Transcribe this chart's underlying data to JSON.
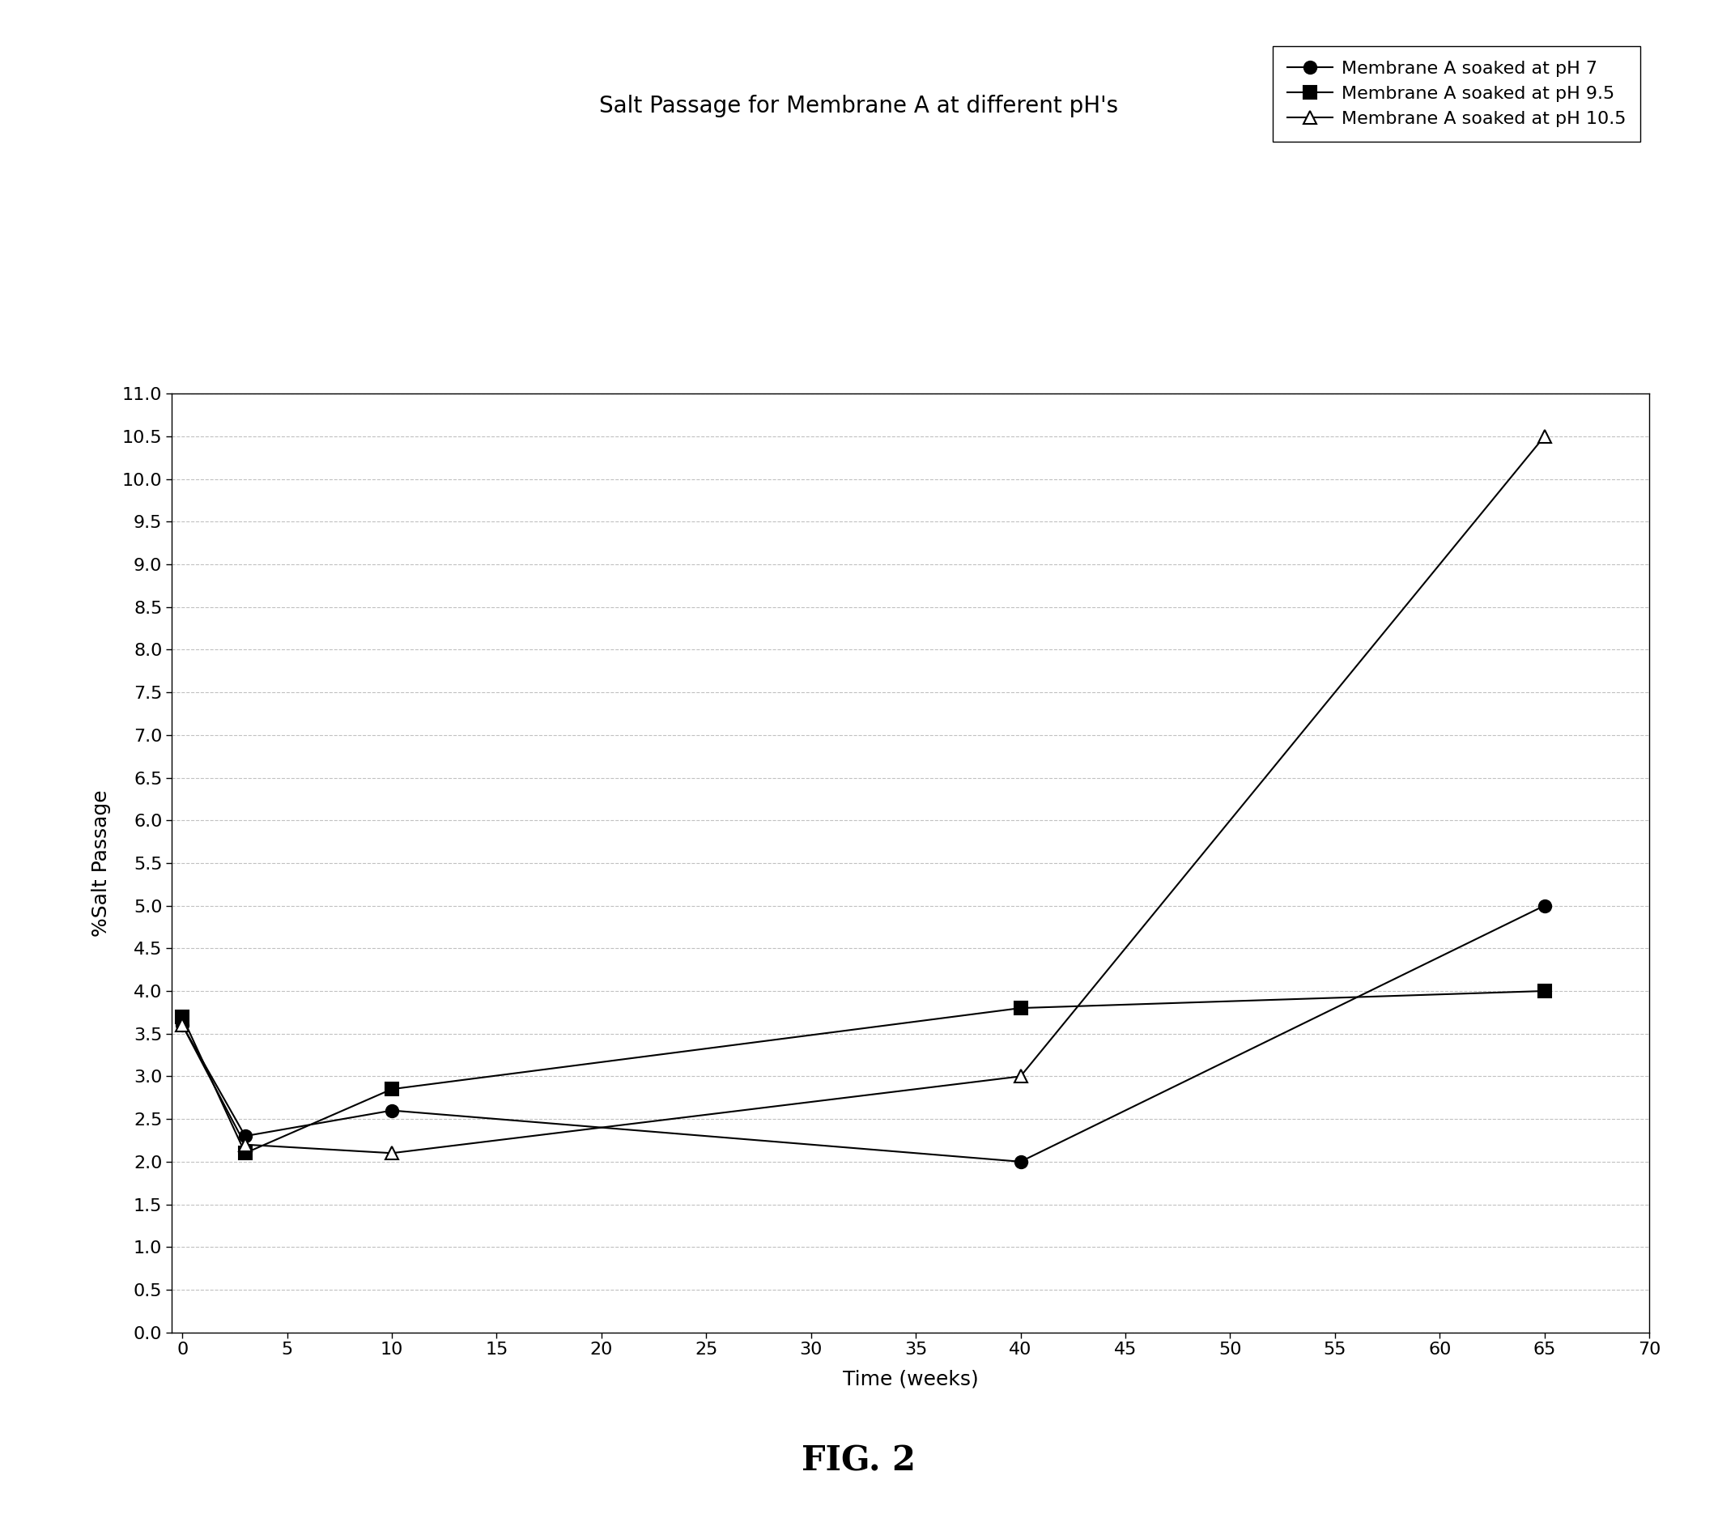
{
  "title": "Salt Passage for Membrane A at different pH's",
  "xlabel": "Time (weeks)",
  "ylabel": "%Salt Passage",
  "fig_label": "FIG. 2",
  "xlim": [
    -0.5,
    70
  ],
  "ylim": [
    0.0,
    11.0
  ],
  "yticks": [
    0.0,
    0.5,
    1.0,
    1.5,
    2.0,
    2.5,
    3.0,
    3.5,
    4.0,
    4.5,
    5.0,
    5.5,
    6.0,
    6.5,
    7.0,
    7.5,
    8.0,
    8.5,
    9.0,
    9.5,
    10.0,
    10.5,
    11.0
  ],
  "xticks": [
    0,
    5,
    10,
    15,
    20,
    25,
    30,
    35,
    40,
    45,
    50,
    55,
    60,
    65,
    70
  ],
  "series": [
    {
      "label": "Membrane A soaked at pH 7",
      "x": [
        0,
        3,
        10,
        40,
        65
      ],
      "y": [
        3.6,
        2.3,
        2.6,
        2.0,
        5.0
      ],
      "marker": "o",
      "marker_fill": "#000000",
      "marker_size": 11,
      "linestyle": "-",
      "color": "#000000",
      "linewidth": 1.5
    },
    {
      "label": "Membrane A soaked at pH 9.5",
      "x": [
        0,
        3,
        10,
        40,
        65
      ],
      "y": [
        3.7,
        2.1,
        2.85,
        3.8,
        4.0
      ],
      "marker": "s",
      "marker_fill": "#000000",
      "marker_size": 11,
      "linestyle": "-",
      "color": "#000000",
      "linewidth": 1.5
    },
    {
      "label": "Membrane A soaked at pH 10.5",
      "x": [
        0,
        3,
        10,
        40,
        65
      ],
      "y": [
        3.6,
        2.2,
        2.1,
        3.0,
        10.5
      ],
      "marker": "^",
      "marker_fill": "white",
      "marker_size": 12,
      "linestyle": "-",
      "color": "#000000",
      "linewidth": 1.5
    }
  ],
  "background_color": "#ffffff",
  "grid_color": "#bbbbbb",
  "title_fontsize": 20,
  "label_fontsize": 18,
  "tick_fontsize": 16,
  "legend_fontsize": 16,
  "fig_label_fontsize": 30
}
